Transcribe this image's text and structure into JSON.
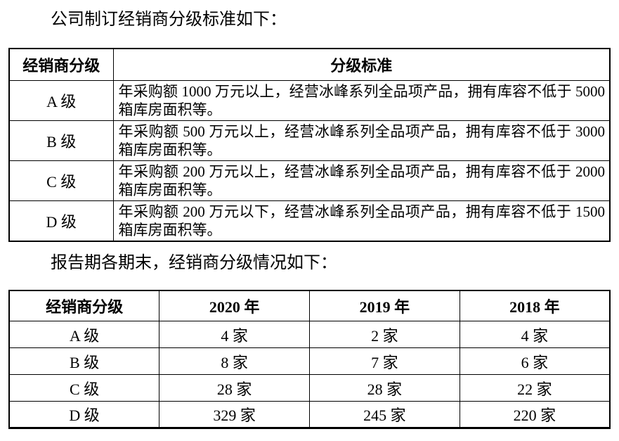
{
  "page": {
    "intro_1": "公司制订经销商分级标准如下：",
    "intro_2": "报告期各期末，经销商分级情况如下："
  },
  "grading_table": {
    "headers": [
      "经销商分级",
      "分级标准"
    ],
    "rows": [
      {
        "level": "A 级",
        "standard": "年采购额 1000 万元以上，经营冰峰系列全品项产品，拥有库容不低于 5000 箱库房面积等。"
      },
      {
        "level": "B 级",
        "standard": "年采购额 500 万元以上，经营冰峰系列全品项产品，拥有库容不低于 3000 箱库房面积等。"
      },
      {
        "level": "C 级",
        "standard": "年采购额 200 万元以上，经营冰峰系列全品项产品，拥有库容不低于 2000 箱库房面积等。"
      },
      {
        "level": "D 级",
        "standard": "年采购额 200 万元以下，经营冰峰系列全品项产品，拥有库容不低于 1500 箱库房面积等。"
      }
    ]
  },
  "count_table": {
    "headers": [
      "经销商分级",
      "2020 年",
      "2019 年",
      "2018 年"
    ],
    "rows": [
      {
        "cells": [
          "A 级",
          "4 家",
          "2 家",
          "4 家"
        ]
      },
      {
        "cells": [
          "B 级",
          "8 家",
          "7 家",
          "6 家"
        ]
      },
      {
        "cells": [
          "C 级",
          "28 家",
          "28 家",
          "22 家"
        ]
      },
      {
        "cells": [
          "D 级",
          "329 家",
          "245 家",
          "220 家"
        ]
      }
    ]
  }
}
